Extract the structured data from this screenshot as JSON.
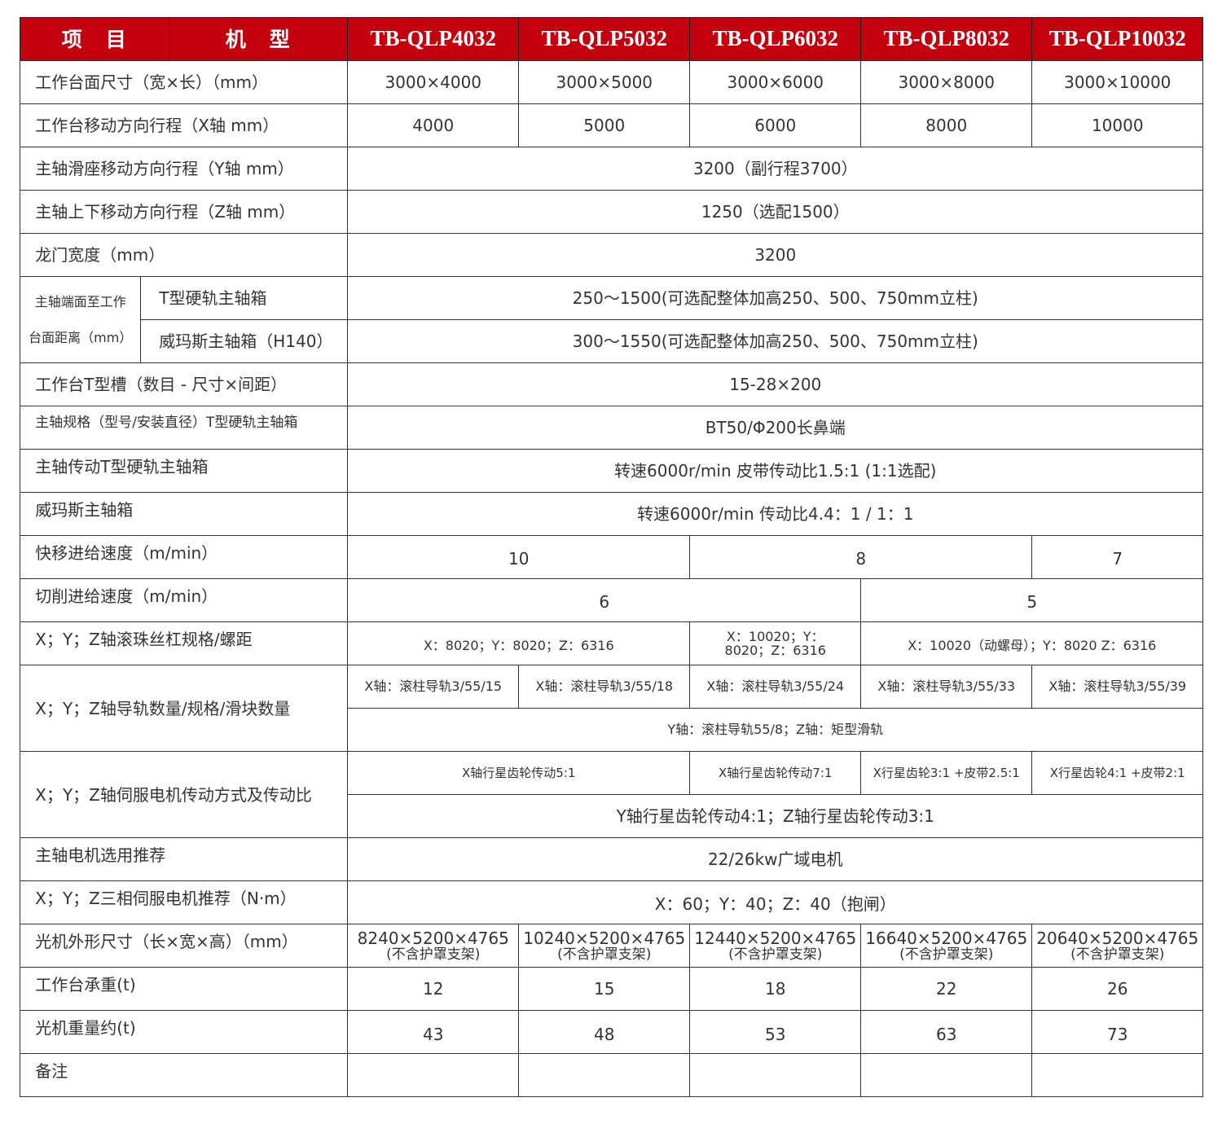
{
  "header": {
    "item": "项　目",
    "model": "机　型",
    "models": [
      "TB-QLP4032",
      "TB-QLP5032",
      "TB-QLP6032",
      "TB-QLP8032",
      "TB-QLP10032"
    ]
  },
  "colors": {
    "header_bg": "#c4000f",
    "header_text": "#ffffff",
    "border": "#333333"
  },
  "rows": {
    "table_size": {
      "label": "工作台面尺寸（宽×长）（mm）",
      "values": [
        "3000×4000",
        "3000×5000",
        "3000×6000",
        "3000×8000",
        "3000×10000"
      ]
    },
    "x_travel": {
      "label": "工作台移动方向行程（X轴 mm）",
      "values": [
        "4000",
        "5000",
        "6000",
        "8000",
        "10000"
      ]
    },
    "y_travel": {
      "label": "主轴滑座移动方向行程（Y轴 mm）",
      "value": "3200（副行程3700）"
    },
    "z_travel": {
      "label": "主轴上下移动方向行程（Z轴 mm）",
      "value": "1250（选配1500）"
    },
    "gantry_width": {
      "label": "龙门宽度（mm）",
      "value": "3200"
    },
    "spindle_distance": {
      "label_line1": "主轴端面至工作",
      "label_line2": "台面距离（mm）",
      "t_label": "T型硬轨主轴箱",
      "t_value": "250～1500(可选配整体加高250、500、750mm立柱)",
      "w_label": "威玛斯主轴箱（H140）",
      "w_value": "300～1550(可选配整体加高250、500、750mm立柱)"
    },
    "t_slot": {
      "label": "工作台T型槽（数目 - 尺寸×间距）",
      "value": "15-28×200"
    },
    "spindle_spec": {
      "label": "主轴规格（型号/安装直径）T型硬轨主轴箱",
      "value": "BT50/Φ200长鼻端"
    },
    "spindle_drive_t": {
      "label": "主轴传动T型硬轨主轴箱",
      "value": "转速6000r/min 皮带传动比1.5:1 (1:1选配)"
    },
    "spindle_drive_w": {
      "label": "威玛斯主轴箱",
      "value": "转速6000r/min 传动比4.4：1 / 1：1"
    },
    "rapid_feed": {
      "label": "快移进给速度（m/min）",
      "values": [
        "10",
        "8",
        "7"
      ]
    },
    "cutting_feed": {
      "label": "切削进给速度（m/min）",
      "values": [
        "6",
        "5"
      ]
    },
    "ballscrew": {
      "label": "X；Y；Z轴滚珠丝杠规格/螺距",
      "values": [
        "X：8020；Y：8020；Z：6316",
        "X：10020；Y：8020；Z：6316",
        "X：10020（动螺母）；Y：8020 Z：6316"
      ]
    },
    "guides": {
      "label": "X；Y；Z轴导轨数量/规格/滑块数量",
      "x_values": [
        "X轴：滚柱导轨3/55/15",
        "X轴：滚柱导轨3/55/18",
        "X轴：滚柱导轨3/55/24",
        "X轴：滚柱导轨3/55/33",
        "X轴：滚柱导轨3/55/39"
      ],
      "yz_value": "Y轴：滚柱导轨55/8；Z轴：矩型滑轨"
    },
    "servo_drive": {
      "label": "X；Y；Z轴伺服电机传动方式及传动比",
      "x_values": [
        "X轴行星齿轮传动5:1",
        "X轴行星齿轮传动7:1",
        "X行星齿轮3:1 +皮带2.5:1",
        "X行星齿轮4:1 +皮带2:1"
      ],
      "yz_value": "Y轴行星齿轮传动4:1；Z轴行星齿轮传动3:1"
    },
    "spindle_motor": {
      "label": "主轴电机选用推荐",
      "value": "22/26kw广域电机"
    },
    "servo_motor": {
      "label": "X；Y；Z三相伺服电机推荐（N·m）",
      "value": "X：60；Y：40；Z：40（抱闸）"
    },
    "dimensions": {
      "label": "光机外形尺寸（长×宽×高）（mm）",
      "values": [
        "8240×5200×4765",
        "10240×5200×4765",
        "12440×5200×4765",
        "16640×5200×4765",
        "20640×5200×4765"
      ],
      "note": "(不含护罩支架)"
    },
    "table_load": {
      "label": "工作台承重(t)",
      "values": [
        "12",
        "15",
        "18",
        "22",
        "26"
      ]
    },
    "weight": {
      "label": "光机重量约(t)",
      "values": [
        "43",
        "48",
        "53",
        "63",
        "73"
      ]
    },
    "remarks": {
      "label": "备注",
      "values": [
        "",
        "",
        "",
        "",
        ""
      ]
    }
  }
}
